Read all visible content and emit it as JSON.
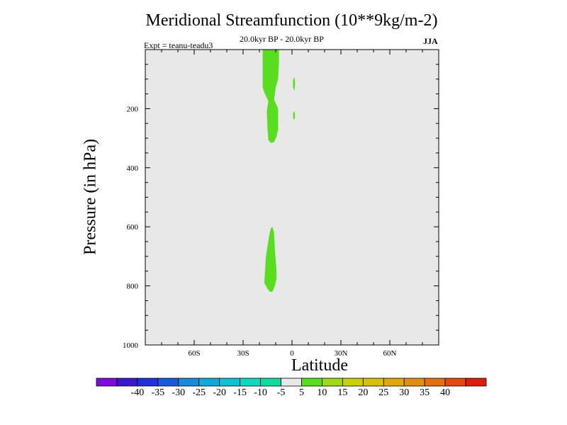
{
  "chart_data": {
    "type": "contour",
    "title": "Meridional Streamfunction (10**9kg/m-2)",
    "subtitle": "20.0kyr BP - 20.0kyr BP",
    "left_note": "Expt = teanu-teadu3",
    "season": "JJA",
    "xlabel": "Latitude",
    "ylabel": "Pressure (in hPa)",
    "xlim": [
      -90,
      90
    ],
    "ylim": [
      1000,
      0
    ],
    "x_ticks": [
      {
        "value": -60,
        "label": "60S"
      },
      {
        "value": -30,
        "label": "30S"
      },
      {
        "value": 0,
        "label": "0"
      },
      {
        "value": 30,
        "label": "30N"
      },
      {
        "value": 60,
        "label": "60N"
      }
    ],
    "y_ticks": [
      {
        "value": 200,
        "label": "200"
      },
      {
        "value": 400,
        "label": "400"
      },
      {
        "value": 600,
        "label": "600"
      },
      {
        "value": 800,
        "label": "800"
      },
      {
        "value": 1000,
        "label": "1000"
      }
    ],
    "background_fill": "#e8e8e8",
    "colorbar": {
      "colors": [
        "#7a10d8",
        "#3a1ac8",
        "#2230d8",
        "#1a5ad8",
        "#1a8ad8",
        "#10a8d8",
        "#10c0d0",
        "#10d8c0",
        "#10d8a0",
        "#e8e8e8",
        "#5adc20",
        "#a0d818",
        "#c8d010",
        "#d8c010",
        "#e0a810",
        "#e09010",
        "#e07010",
        "#e04a10",
        "#d82010"
      ],
      "labels": [
        "-40",
        "-35",
        "-30",
        "-25",
        "-20",
        "-15",
        "-10",
        "-5",
        "5",
        "10",
        "15",
        "20",
        "25",
        "30",
        "35",
        "40"
      ]
    },
    "regions": [
      {
        "name": "upper-main-lobe",
        "value_class": "5 to 10",
        "color": "#5adc20",
        "points": [
          [
            -18,
            0
          ],
          [
            -8,
            0
          ],
          [
            -8,
            40
          ],
          [
            -8.5,
            100
          ],
          [
            -10,
            128
          ],
          [
            -11,
            170
          ],
          [
            -8.5,
            200
          ],
          [
            -8.5,
            270
          ],
          [
            -9.5,
            295
          ],
          [
            -11,
            313
          ],
          [
            -13,
            316
          ],
          [
            -14.5,
            305
          ],
          [
            -15,
            270
          ],
          [
            -15.5,
            210
          ],
          [
            -14.5,
            175
          ],
          [
            -17,
            145
          ],
          [
            -18,
            128
          ],
          [
            -18,
            60
          ]
        ]
      },
      {
        "name": "lower-lobe",
        "value_class": "5 to 10",
        "color": "#5adc20",
        "points": [
          [
            -12,
            600
          ],
          [
            -11,
            620
          ],
          [
            -10.5,
            680
          ],
          [
            -9.5,
            745
          ],
          [
            -9.5,
            775
          ],
          [
            -10.5,
            800
          ],
          [
            -12,
            820
          ],
          [
            -13.5,
            820
          ],
          [
            -15,
            810
          ],
          [
            -17,
            790
          ],
          [
            -16,
            700
          ],
          [
            -14,
            630
          ],
          [
            -13,
            605
          ]
        ]
      },
      {
        "name": "sliver-upper",
        "value_class": "5 to 10",
        "color": "#5adc20",
        "points": [
          [
            1.5,
            92
          ],
          [
            1.9,
            115
          ],
          [
            1.5,
            140
          ],
          [
            0.6,
            128
          ],
          [
            0.6,
            105
          ]
        ]
      },
      {
        "name": "sliver-lower",
        "value_class": "5 to 10",
        "color": "#5adc20",
        "points": [
          [
            1.5,
            208
          ],
          [
            1.9,
            225
          ],
          [
            1.5,
            238
          ],
          [
            0.7,
            232
          ],
          [
            0.7,
            215
          ]
        ]
      }
    ]
  }
}
